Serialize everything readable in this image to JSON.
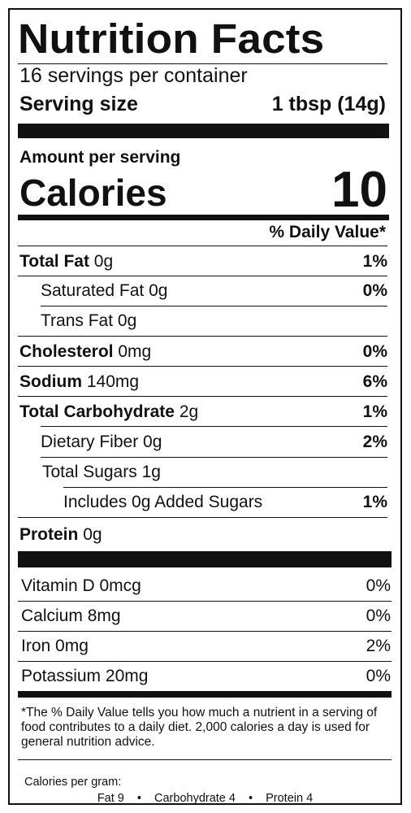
{
  "title": "Nutrition Facts",
  "servings_per_container": "16 servings per container",
  "serving_size": {
    "label": "Serving size",
    "value": "1 tbsp (14g)"
  },
  "amount_per_serving": "Amount per serving",
  "calories": {
    "label": "Calories",
    "value": "10"
  },
  "daily_value_header": "% Daily Value*",
  "nutrients": [
    {
      "name": "Total Fat",
      "amount": "0g",
      "dv": "1%"
    },
    {
      "name": "Saturated Fat",
      "amount": "0g",
      "dv": "0%"
    },
    {
      "name": "Trans Fat",
      "amount": "0g",
      "dv": ""
    },
    {
      "name": "Cholesterol",
      "amount": "0mg",
      "dv": "0%"
    },
    {
      "name": "Sodium",
      "amount": "140mg",
      "dv": "6%"
    },
    {
      "name": "Total Carbohydrate",
      "amount": "2g",
      "dv": "1%"
    },
    {
      "name": "Dietary Fiber",
      "amount": "0g",
      "dv": "2%"
    },
    {
      "name": "Total Sugars",
      "amount": "1g",
      "dv": ""
    },
    {
      "name": "Includes 0g Added Sugars",
      "amount": "",
      "dv": "1%"
    },
    {
      "name": "Protein",
      "amount": "0g",
      "dv": ""
    }
  ],
  "vitamins": [
    {
      "name": "Vitamin D",
      "amount": "0mcg",
      "dv": "0%"
    },
    {
      "name": "Calcium",
      "amount": "8mg",
      "dv": "0%"
    },
    {
      "name": "Iron",
      "amount": "0mg",
      "dv": "2%"
    },
    {
      "name": "Potassium",
      "amount": "20mg",
      "dv": "0%"
    }
  ],
  "footnote": "*The % Daily Value tells you how much a nutrient in a serving of food contributes to a daily diet. 2,000 calories a day is used for general nutrition advice.",
  "calories_per_gram": {
    "label": "Calories per gram:",
    "fat": "Fat 9",
    "carbohydrate": "Carbohydrate 4",
    "protein": "Protein 4",
    "separator": "•"
  }
}
